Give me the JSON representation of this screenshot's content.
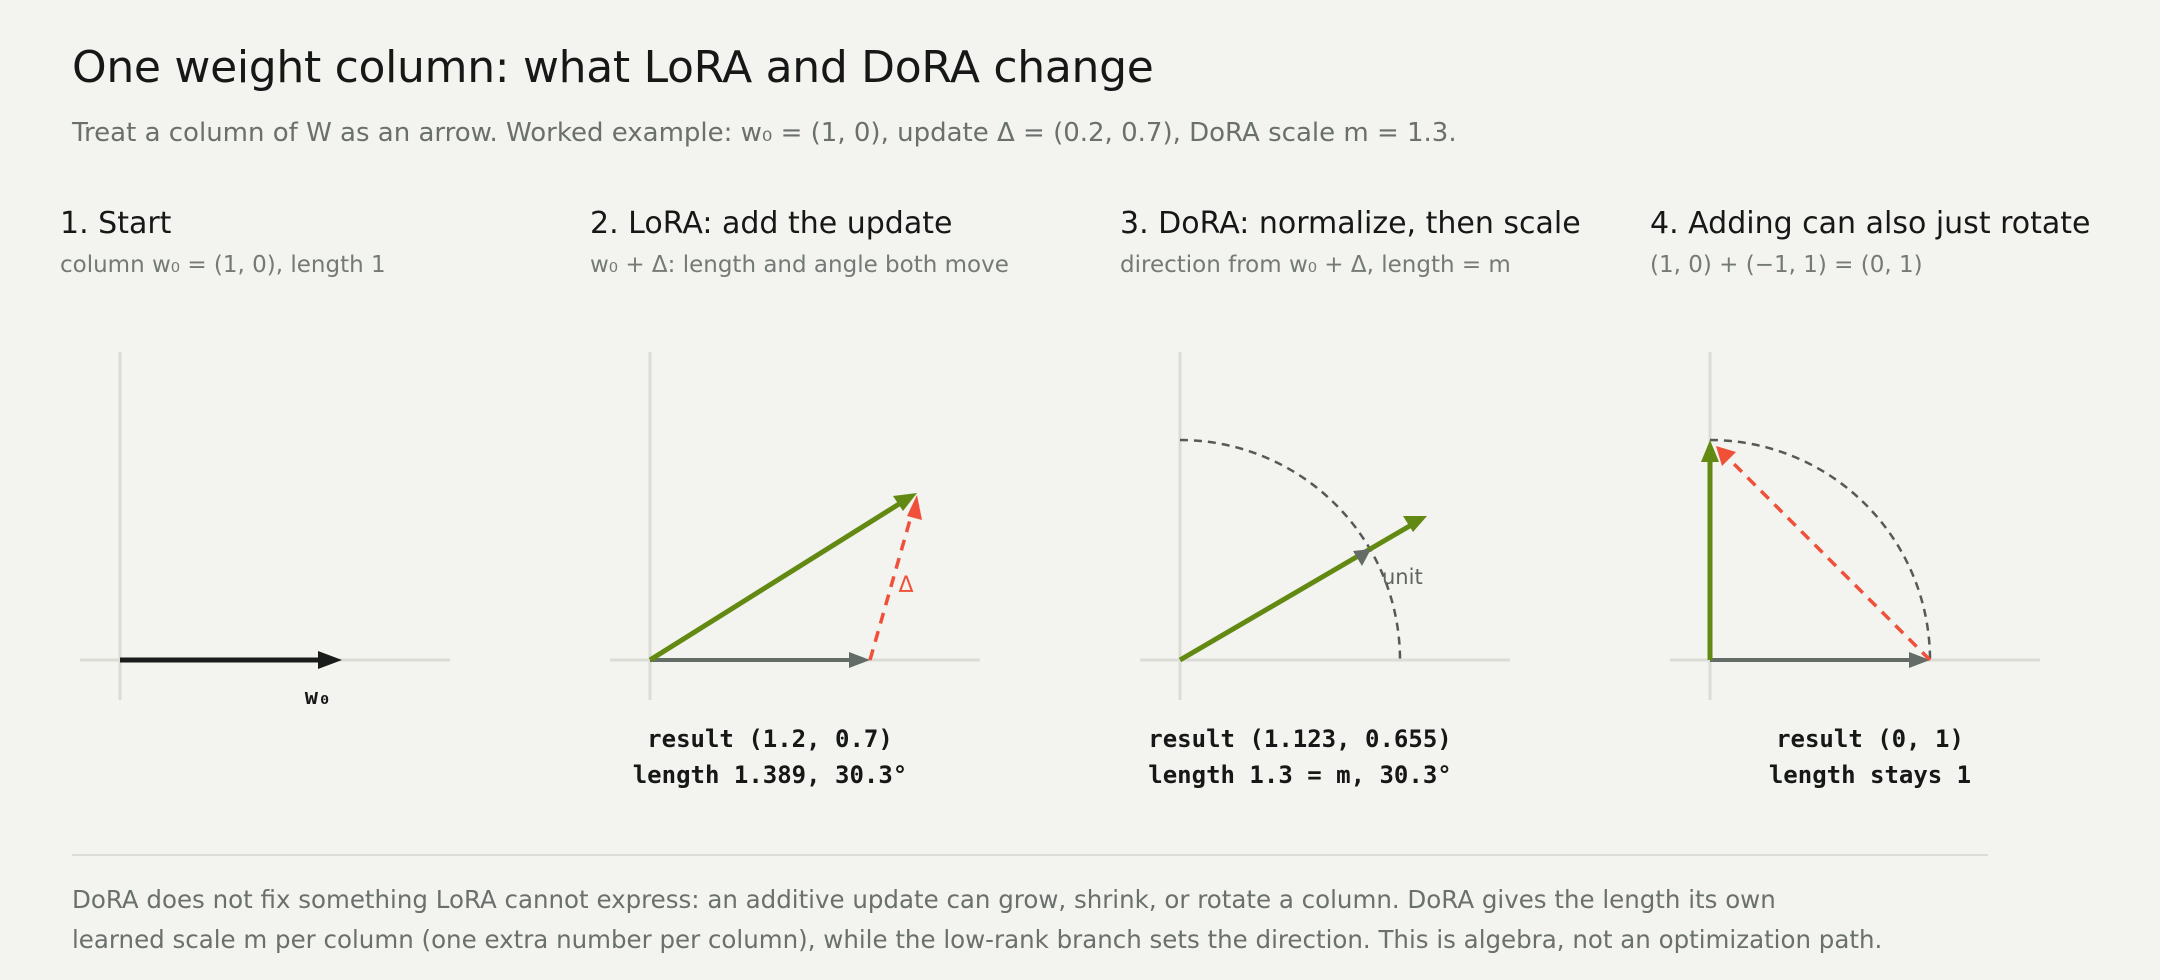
{
  "header": {
    "title": "One weight column: what LoRA and DoRA change",
    "subtitle": "Treat a column of W as an arrow. Worked example: w₀ = (1, 0), update Δ = (0.2, 0.7), DoRA scale m = 1.3."
  },
  "colors": {
    "base_vector": "#1a1c1b",
    "base_vector_muted": "#646c67",
    "result_vector": "#628a12",
    "update_vector": "#f05038",
    "unit_arc": "#555a57",
    "axis": "#dcdcd6",
    "background": "#f3f3ef"
  },
  "panels": [
    {
      "title": "1. Start",
      "caption": "column w₀ = (1, 0), length 1",
      "vectors": {
        "w0": [
          1,
          0
        ]
      },
      "vector_label": "w₀",
      "result_line1": "",
      "result_line2": ""
    },
    {
      "title": "2. LoRA: add the update",
      "caption": "w₀ + Δ: length and angle both move",
      "vectors": {
        "w0": [
          1,
          0
        ],
        "delta": [
          0.2,
          0.7
        ],
        "result": [
          1.2,
          0.7
        ]
      },
      "delta_label": "Δ",
      "result_line1": "result (1.2, 0.7)",
      "result_line2": "length 1.389, 30.3°"
    },
    {
      "title": "3. DoRA: normalize, then scale",
      "caption": "direction from w₀ + Δ, length = m",
      "vectors": {
        "unit_direction": [
          0.864,
          0.504
        ],
        "result": [
          1.123,
          0.655
        ]
      },
      "arc_label": "unit",
      "result_line1": "result (1.123, 0.655)",
      "result_line2": "length 1.3 = m, 30.3°"
    },
    {
      "title": "4. Adding can also just rotate",
      "caption": "(1, 0) + (−1, 1) = (0, 1)",
      "vectors": {
        "w0": [
          1,
          0
        ],
        "delta": [
          -1,
          1
        ],
        "result": [
          0,
          1
        ]
      },
      "result_line1": "result (0, 1)",
      "result_line2": "length stays 1"
    }
  ],
  "footer": {
    "line1": "DoRA does not fix something LoRA cannot express: an additive update can grow, shrink, or rotate a column. DoRA gives the length its own",
    "line2": "learned scale m per column (one extra number per column), while the low-rank branch sets the direction. This is algebra, not an optimization path."
  }
}
